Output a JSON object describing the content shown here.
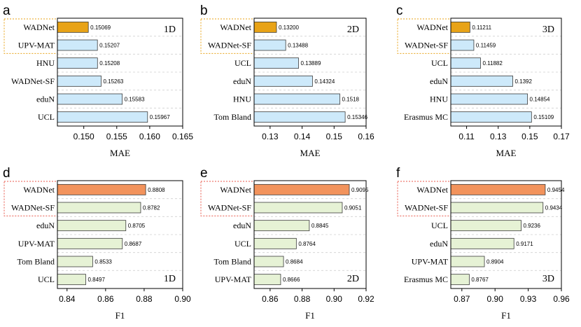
{
  "chart_data": [
    {
      "type": "bar",
      "panel": "a",
      "dimension": "1D",
      "metric": "MAE",
      "xlabel": "MAE",
      "xlim": [
        0.146,
        0.165
      ],
      "ticks": [
        "0.150",
        "0.155",
        "0.160",
        "0.165"
      ],
      "categories": [
        "WADNet",
        "UPV-MAT",
        "HNU",
        "WADNet-SF",
        "eduN",
        "UCL"
      ],
      "values": [
        0.15069,
        0.15207,
        0.15208,
        0.15263,
        0.15583,
        0.15967
      ],
      "labels": [
        "0.15069",
        "0.15207",
        "0.15208",
        "0.15263",
        "0.15583",
        "0.15967"
      ],
      "highlight": [
        "WADNet",
        "WADNet-SF"
      ]
    },
    {
      "type": "bar",
      "panel": "b",
      "dimension": "2D",
      "metric": "MAE",
      "xlabel": "MAE",
      "xlim": [
        0.125,
        0.16
      ],
      "ticks": [
        "0.13",
        "0.14",
        "0.15",
        "0.16"
      ],
      "categories": [
        "WADNet",
        "WADNet-SF",
        "UCL",
        "eduN",
        "HNU",
        "Tom Bland"
      ],
      "values": [
        0.132,
        0.13488,
        0.13889,
        0.14324,
        0.1518,
        0.15346
      ],
      "labels": [
        "0.13200",
        "0.13488",
        "0.13889",
        "0.14324",
        "0.1518",
        "0.15346"
      ],
      "highlight": [
        "WADNet",
        "WADNet-SF"
      ]
    },
    {
      "type": "bar",
      "panel": "c",
      "dimension": "3D",
      "metric": "MAE",
      "xlabel": "MAE",
      "xlim": [
        0.1,
        0.17
      ],
      "ticks": [
        "0.11",
        "0.13",
        "0.15",
        "0.17"
      ],
      "categories": [
        "WADNet",
        "WADNet-SF",
        "UCL",
        "eduN",
        "HNU",
        "Erasmus MC"
      ],
      "values": [
        0.11211,
        0.11459,
        0.11882,
        0.1392,
        0.14854,
        0.15109
      ],
      "labels": [
        "0.11211",
        "0.11459",
        "0.11882",
        "0.1392",
        "0.14854",
        "0.15109"
      ],
      "highlight": [
        "WADNet",
        "WADNet-SF"
      ]
    },
    {
      "type": "bar",
      "panel": "d",
      "dimension": "1D",
      "metric": "F1",
      "xlabel": "F1",
      "xlim": [
        0.835,
        0.9
      ],
      "ticks": [
        "0.84",
        "0.86",
        "0.88",
        "0.90"
      ],
      "categories": [
        "WADNet",
        "WADNet-SF",
        "eduN",
        "UPV-MAT",
        "Tom Bland",
        "UCL"
      ],
      "values": [
        0.8808,
        0.8782,
        0.8705,
        0.8687,
        0.8533,
        0.8497
      ],
      "labels": [
        "0.8808",
        "0.8782",
        "0.8705",
        "0.8687",
        "0.8533",
        "0.8497"
      ],
      "highlight": [
        "WADNet",
        "WADNet-SF"
      ]
    },
    {
      "type": "bar",
      "panel": "e",
      "dimension": "2D",
      "metric": "F1",
      "xlabel": "F1",
      "xlim": [
        0.85,
        0.92
      ],
      "ticks": [
        "0.86",
        "0.88",
        "0.90",
        "0.92"
      ],
      "categories": [
        "WADNet",
        "WADNet-SF",
        "eduN",
        "UCL",
        "Tom Bland",
        "UPV-MAT"
      ],
      "values": [
        0.9095,
        0.9051,
        0.8845,
        0.8764,
        0.8684,
        0.8666
      ],
      "labels": [
        "0.9095",
        "0.9051",
        "0.8845",
        "0.8764",
        "0.8684",
        "0.8666"
      ],
      "highlight": [
        "WADNet",
        "WADNet-SF"
      ]
    },
    {
      "type": "bar",
      "panel": "f",
      "dimension": "3D",
      "metric": "F1",
      "xlabel": "F1",
      "xlim": [
        0.86,
        0.96
      ],
      "ticks": [
        "0.87",
        "0.90",
        "0.93",
        "0.96"
      ],
      "categories": [
        "WADNet",
        "WADNet-SF",
        "UCL",
        "eduN",
        "UPV-MAT",
        "Erasmus MC"
      ],
      "values": [
        0.9454,
        0.9434,
        0.9236,
        0.9171,
        0.8904,
        0.8767
      ],
      "labels": [
        "0.9454",
        "0.9434",
        "0.9236",
        "0.9171",
        "0.8904",
        "0.8767"
      ],
      "highlight": [
        "WADNet",
        "WADNet-SF"
      ]
    }
  ],
  "colors": {
    "mae_top": "#E8A317",
    "mae_other": "#CDE9FA",
    "f1_top": "#F2935C",
    "f1_other": "#E6F2D5",
    "mae_highlight_box": "#E8A317",
    "f1_highlight_box": "#E8574A"
  }
}
